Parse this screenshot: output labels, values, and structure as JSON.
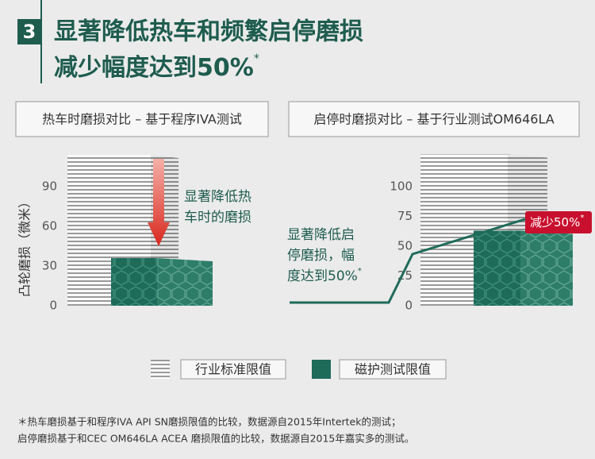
{
  "header": {
    "badge": "3",
    "title_line1": "显著降低热车和频繁启停磨损",
    "title_line2": "减少幅度达到50%",
    "title_mark": "*"
  },
  "legend": [
    {
      "name": "行业标准限值",
      "color": "#d9d9d9"
    },
    {
      "name": "磁护测试限值",
      "color": "#1f6b5a"
    }
  ],
  "chart_data": [
    {
      "type": "bar",
      "title": "热车时磨损对比 – 基于程序IVA测试",
      "ylabel": "凸轮磨损（微米）",
      "categories": [
        null
      ],
      "series": [
        {
          "color": "#d9d9d9",
          "values": [
            114
          ]
        },
        {
          "color": "#1f6b5a",
          "values": [
            36
          ]
        }
      ],
      "ylim": [
        0,
        120
      ],
      "yticks": [
        0,
        30,
        60,
        90
      ],
      "annotation_lines": [
        "显著降低热",
        "车时的磨损"
      ]
    },
    {
      "type": "bar",
      "title": "启停时磨损对比 – 基于行业测试OM646LA",
      "categories": [
        null
      ],
      "series": [
        {
          "color": "#d9d9d9",
          "values": [
            127
          ]
        },
        {
          "color": "#1f6b5a",
          "values": [
            63
          ]
        }
      ],
      "ylim": [
        0,
        130
      ],
      "yticks": [
        0,
        25,
        50,
        75,
        100
      ],
      "annotation_lines": [
        "显著降低启",
        "停磨损，幅",
        "度达到50%"
      ],
      "annotation_mark": "*",
      "callout": "减少50%",
      "callout_mark": "*"
    }
  ],
  "footnote": [
    "＊热车磨损基于和程序IVA API SN磨损限值的比较，数据源自2015年Intertek的测试；",
    "启停磨损基于和CEC OM646LA ACEA 磨损限值的比较，数据源自2015年嘉实多的测试。"
  ]
}
